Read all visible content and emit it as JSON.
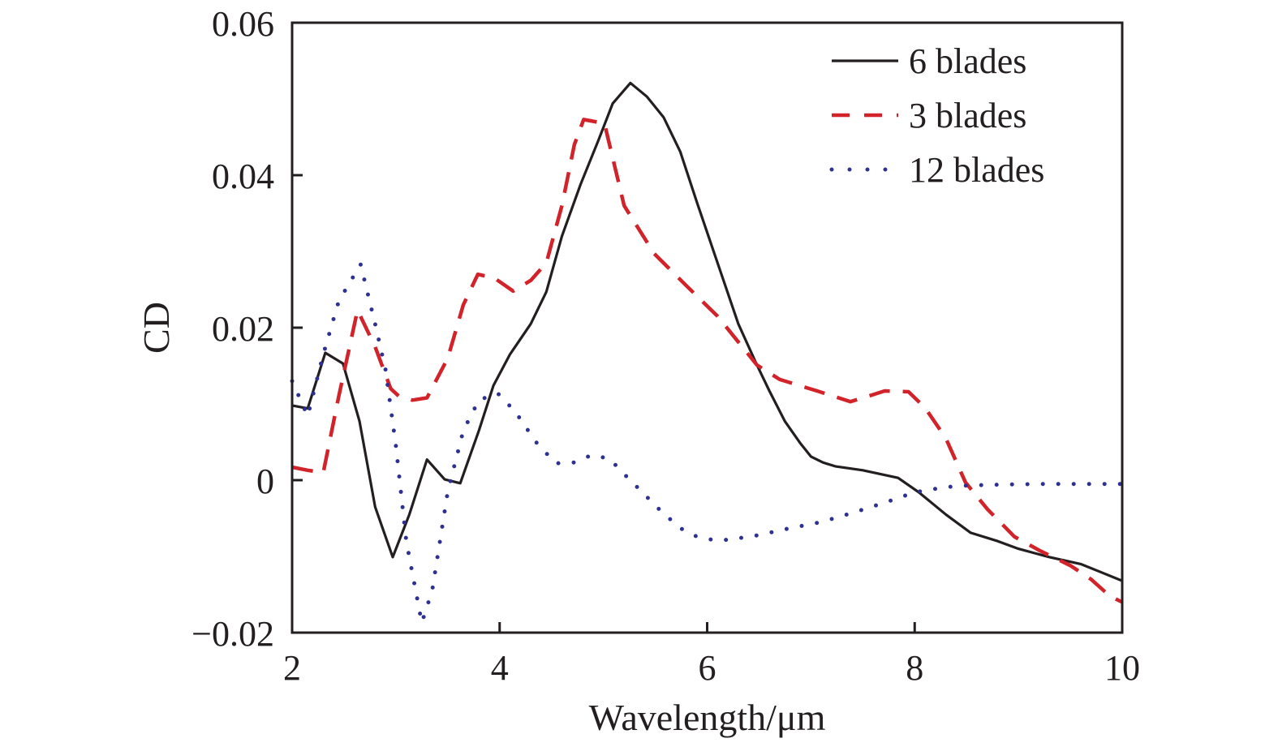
{
  "chart_data": {
    "type": "line",
    "title": "",
    "xlabel": "Wavelength/μm",
    "ylabel": "CD",
    "xlim": [
      2,
      10
    ],
    "ylim": [
      -0.02,
      0.06
    ],
    "xticks": [
      2,
      4,
      6,
      8,
      10
    ],
    "xtick_labels": [
      "2",
      "4",
      "6",
      "8",
      "10"
    ],
    "yticks": [
      -0.02,
      0,
      0.02,
      0.04,
      0.06
    ],
    "ytick_labels": [
      "−0.02",
      "0",
      "0.02",
      "0.04",
      "0.06"
    ],
    "grid": false,
    "legend_position": "top-right",
    "series": [
      {
        "name": "6 blades",
        "color": "#231f20",
        "style": "solid",
        "x": [
          2.0,
          2.15,
          2.32,
          2.49,
          2.65,
          2.8,
          2.97,
          3.13,
          3.3,
          3.47,
          3.62,
          3.8,
          3.94,
          4.1,
          4.3,
          4.45,
          4.6,
          4.78,
          4.95,
          5.09,
          5.26,
          5.42,
          5.58,
          5.74,
          5.9,
          6.1,
          6.3,
          6.48,
          6.6,
          6.75,
          6.9,
          7.0,
          7.12,
          7.24,
          7.5,
          7.84,
          8.04,
          8.3,
          8.54,
          8.8,
          9.0,
          9.3,
          9.6,
          9.8,
          10.0
        ],
        "y": [
          0.0098,
          0.0094,
          0.0167,
          0.0153,
          0.0077,
          -0.0035,
          -0.0101,
          -0.0045,
          0.0027,
          0.0001,
          -0.0004,
          0.0065,
          0.0124,
          0.0165,
          0.0205,
          0.0247,
          0.032,
          0.0388,
          0.0445,
          0.0494,
          0.0521,
          0.0503,
          0.0476,
          0.0431,
          0.0365,
          0.0285,
          0.0205,
          0.0151,
          0.0117,
          0.0077,
          0.0048,
          0.0031,
          0.0023,
          0.0018,
          0.0013,
          0.0003,
          -0.0016,
          -0.0045,
          -0.0069,
          -0.008,
          -0.009,
          -0.0101,
          -0.011,
          -0.0121,
          -0.0132
        ]
      },
      {
        "name": "3 blades",
        "color": "#d2232a",
        "style": "dashed",
        "x": [
          2.0,
          2.15,
          2.3,
          2.45,
          2.63,
          2.8,
          2.95,
          3.03,
          3.16,
          3.3,
          3.5,
          3.65,
          3.79,
          3.95,
          4.13,
          4.3,
          4.45,
          4.6,
          4.72,
          4.81,
          5.01,
          5.2,
          5.49,
          5.8,
          6.1,
          6.48,
          6.7,
          7.06,
          7.38,
          7.55,
          7.71,
          7.94,
          8.1,
          8.3,
          8.49,
          8.7,
          8.96,
          9.2,
          9.5,
          9.7,
          9.88,
          10.0
        ],
        "y": [
          0.0017,
          0.0013,
          0.001,
          0.011,
          0.0223,
          0.0175,
          0.012,
          0.011,
          0.0105,
          0.0108,
          0.016,
          0.023,
          0.027,
          0.0265,
          0.0248,
          0.0262,
          0.0285,
          0.036,
          0.044,
          0.0473,
          0.0468,
          0.036,
          0.0297,
          0.0255,
          0.0215,
          0.0151,
          0.0132,
          0.0117,
          0.0103,
          0.011,
          0.0117,
          0.0116,
          0.0095,
          0.0055,
          -0.0003,
          -0.0038,
          -0.0074,
          -0.0092,
          -0.0112,
          -0.013,
          -0.0152,
          -0.016
        ]
      },
      {
        "name": "12 blades",
        "color": "#2e3192",
        "style": "dotted",
        "x": [
          2.0,
          2.15,
          2.3,
          2.45,
          2.66,
          2.8,
          2.9,
          3.0,
          3.1,
          3.25,
          3.35,
          3.5,
          3.65,
          3.8,
          3.98,
          4.15,
          4.35,
          4.54,
          4.71,
          4.89,
          5.06,
          5.2,
          5.39,
          5.55,
          5.74,
          5.9,
          6.08,
          6.22,
          6.5,
          6.8,
          7.1,
          7.4,
          7.7,
          8.0,
          8.3,
          8.51,
          8.8,
          9.2,
          9.6,
          10.0
        ],
        "y": [
          0.013,
          0.0084,
          0.0165,
          0.0235,
          0.0283,
          0.0205,
          0.0145,
          0.0045,
          -0.008,
          -0.0187,
          -0.0145,
          -0.0015,
          0.0065,
          0.0105,
          0.0114,
          0.009,
          0.005,
          0.0022,
          0.0023,
          0.0033,
          0.0028,
          0.0008,
          -0.0018,
          -0.004,
          -0.0063,
          -0.0074,
          -0.0079,
          -0.0078,
          -0.0072,
          -0.0063,
          -0.0055,
          -0.0043,
          -0.003,
          -0.0016,
          -0.0009,
          -0.0007,
          -0.0006,
          -0.0005,
          -0.0005,
          -0.0005
        ]
      }
    ]
  }
}
